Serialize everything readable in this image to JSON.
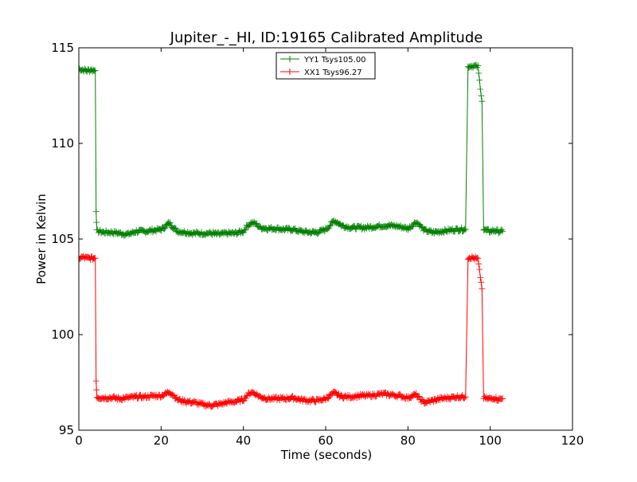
{
  "chart_data": {
    "type": "line",
    "title": "Jupiter_-_HI, ID:19165 Calibrated Amplitude",
    "xlabel": "Time (seconds)",
    "ylabel": "Power in Kelvin",
    "xlim": [
      0,
      120
    ],
    "ylim": [
      95,
      115
    ],
    "xticks": [
      "0",
      "20",
      "40",
      "60",
      "80",
      "100",
      "120"
    ],
    "yticks": [
      "95",
      "100",
      "105",
      "110",
      "115"
    ],
    "grid": false,
    "legend_position": "top-center",
    "series": [
      {
        "name": "YY1 Tsys105.00",
        "color": "#008000",
        "marker": "+",
        "x": [
          0,
          1,
          2,
          3,
          4,
          4.2,
          4.4,
          5,
          6,
          8,
          10,
          12,
          14,
          16,
          18,
          20,
          21,
          22,
          23,
          24,
          26,
          28,
          30,
          32,
          34,
          36,
          38,
          40,
          41,
          42,
          43,
          44,
          46,
          48,
          50,
          52,
          54,
          56,
          58,
          60,
          61,
          62,
          63,
          64,
          66,
          68,
          70,
          72,
          74,
          76,
          78,
          80,
          81,
          82,
          83,
          84,
          86,
          88,
          90,
          92,
          94,
          94.6,
          95,
          96,
          97,
          98,
          98.4,
          99,
          100,
          101,
          102,
          103
        ],
        "y": [
          113.9,
          113.85,
          113.8,
          113.85,
          113.8,
          106.5,
          105.4,
          105.4,
          105.35,
          105.35,
          105.3,
          105.25,
          105.4,
          105.4,
          105.45,
          105.5,
          105.65,
          105.85,
          105.6,
          105.4,
          105.35,
          105.3,
          105.3,
          105.3,
          105.25,
          105.3,
          105.3,
          105.4,
          105.7,
          105.85,
          105.8,
          105.6,
          105.55,
          105.55,
          105.5,
          105.5,
          105.4,
          105.35,
          105.35,
          105.5,
          105.7,
          105.95,
          105.85,
          105.7,
          105.6,
          105.6,
          105.6,
          105.65,
          105.7,
          105.7,
          105.65,
          105.55,
          105.7,
          105.9,
          105.7,
          105.45,
          105.35,
          105.4,
          105.45,
          105.5,
          105.5,
          114.0,
          114.05,
          114.05,
          114.0,
          112.2,
          105.5,
          105.45,
          105.4,
          105.45,
          105.4,
          105.4
        ]
      },
      {
        "name": "XX1 Tsys96.27",
        "color": "#ff0000",
        "marker": "+",
        "x": [
          0,
          1,
          2,
          3,
          4,
          4.2,
          4.4,
          5,
          6,
          8,
          10,
          12,
          14,
          16,
          18,
          20,
          21,
          22,
          23,
          24,
          26,
          28,
          30,
          32,
          34,
          36,
          38,
          40,
          41,
          42,
          43,
          44,
          46,
          48,
          50,
          52,
          54,
          56,
          58,
          60,
          61,
          62,
          63,
          64,
          66,
          68,
          70,
          72,
          74,
          76,
          78,
          80,
          81,
          82,
          83,
          84,
          86,
          88,
          90,
          92,
          94,
          94.6,
          95,
          96,
          97,
          98,
          98.4,
          99,
          100,
          101,
          102,
          103
        ],
        "y": [
          104.0,
          104.05,
          104.0,
          104.0,
          104.0,
          97.6,
          96.75,
          96.7,
          96.7,
          96.7,
          96.65,
          96.7,
          96.75,
          96.75,
          96.8,
          96.8,
          96.9,
          97.0,
          96.85,
          96.6,
          96.5,
          96.45,
          96.35,
          96.3,
          96.35,
          96.45,
          96.5,
          96.6,
          96.85,
          97.0,
          96.9,
          96.75,
          96.65,
          96.65,
          96.65,
          96.7,
          96.6,
          96.55,
          96.55,
          96.65,
          96.8,
          96.95,
          96.85,
          96.75,
          96.75,
          96.8,
          96.8,
          96.85,
          96.9,
          96.85,
          96.8,
          96.7,
          96.8,
          96.85,
          96.6,
          96.45,
          96.55,
          96.65,
          96.7,
          96.75,
          96.75,
          104.0,
          104.05,
          104.0,
          103.95,
          102.4,
          96.7,
          96.65,
          96.65,
          96.7,
          96.6,
          96.65
        ]
      }
    ]
  }
}
